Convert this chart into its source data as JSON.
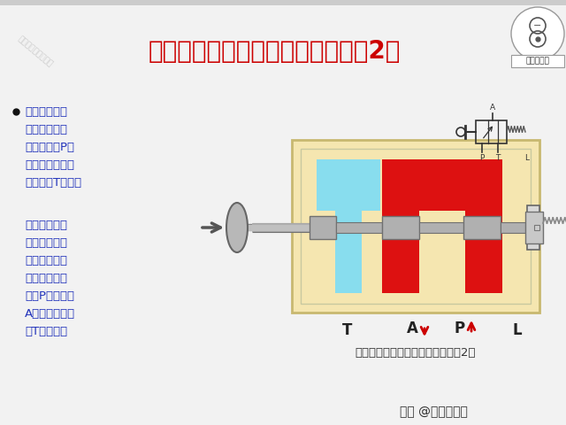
{
  "title": "二位三通换向阀（开关阀原理）（2）",
  "title_color": "#cc0000",
  "title_fontsize": 20,
  "slide_bg": "#f2f2f2",
  "bullet_text_1": "当驱动二位三\n通换向阀动作\n时，进油口P与\n工作油口接通，\n而回油口T关闭。",
  "bullet_text_2": "二位三通换向\n阀也可以为常\n开式，即在静\n止位置时，进\n油口P与工作口\nA接通，而回油\n口T则关闭。",
  "caption": "二位三通换向阀（开关阀原理）（2）",
  "watermark_top": "头条号：一位工程师",
  "watermark_bottom": "头条 @一位工程师",
  "body_yellow": "#f5e6b0",
  "body_border": "#c8b870",
  "inner_border": "#c8c8a0",
  "red_color": "#dd1111",
  "cyan_color": "#88ddee",
  "spool_gray": "#b0b0b0",
  "spool_edge": "#707070",
  "text_blue": "#2233bb",
  "text_dark": "#222222"
}
